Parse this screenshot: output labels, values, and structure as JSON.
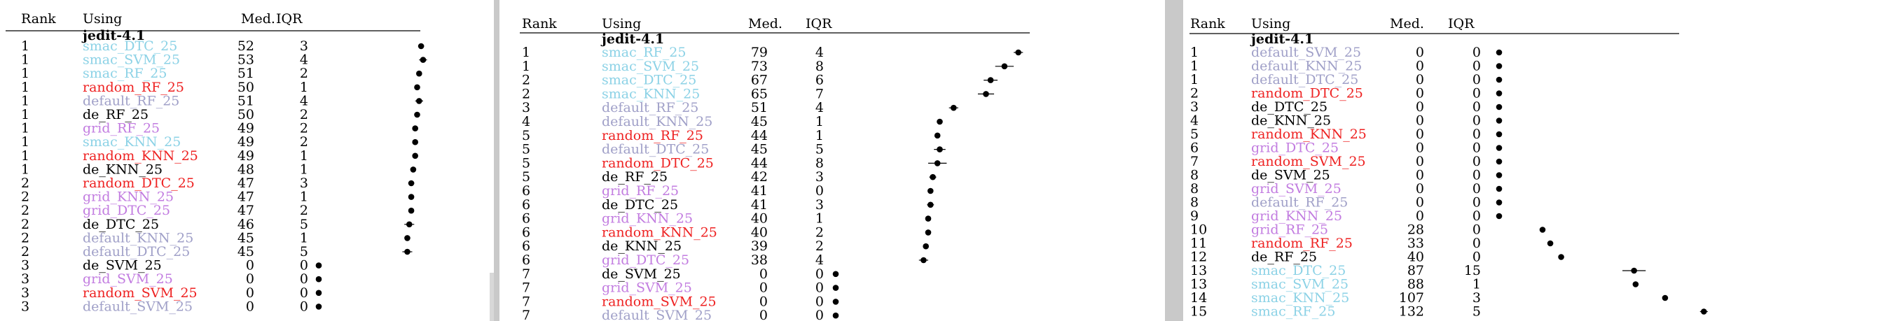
{
  "headers": {
    "rank": "Rank",
    "using": "Using",
    "median": "Med.",
    "iqr": "IQR"
  },
  "panels": [
    {
      "dataset": "jedit-4.1",
      "xmax": 100,
      "rows": [
        {
          "rank": "1",
          "name": "smac_DTC_25",
          "med": 52,
          "iqr": 3,
          "color": "#8cd2e6"
        },
        {
          "rank": "1",
          "name": "smac_SVM_25",
          "med": 53,
          "iqr": 4,
          "color": "#8cd2e6"
        },
        {
          "rank": "1",
          "name": "smac_RF_25",
          "med": 51,
          "iqr": 2,
          "color": "#8cd2e6"
        },
        {
          "rank": "1",
          "name": "random_RF_25",
          "med": 50,
          "iqr": 1,
          "color": "#ee2222"
        },
        {
          "rank": "1",
          "name": "default_RF_25",
          "med": 51,
          "iqr": 4,
          "color": "#a0a0c8"
        },
        {
          "rank": "1",
          "name": "de_RF_25",
          "med": 50,
          "iqr": 2,
          "color": "#000000"
        },
        {
          "rank": "1",
          "name": "grid_RF_25",
          "med": 49,
          "iqr": 2,
          "color": "#c27ce0"
        },
        {
          "rank": "1",
          "name": "smac_KNN_25",
          "med": 49,
          "iqr": 2,
          "color": "#8cd2e6"
        },
        {
          "rank": "1",
          "name": "random_KNN_25",
          "med": 49,
          "iqr": 1,
          "color": "#ee2222"
        },
        {
          "rank": "1",
          "name": "de_KNN_25",
          "med": 48,
          "iqr": 1,
          "color": "#000000"
        },
        {
          "rank": "2",
          "name": "random_DTC_25",
          "med": 47,
          "iqr": 3,
          "color": "#ee2222"
        },
        {
          "rank": "2",
          "name": "grid_KNN_25",
          "med": 47,
          "iqr": 1,
          "color": "#c27ce0"
        },
        {
          "rank": "2",
          "name": "grid_DTC_25",
          "med": 47,
          "iqr": 2,
          "color": "#c27ce0"
        },
        {
          "rank": "2",
          "name": "de_DTC_25",
          "med": 46,
          "iqr": 5,
          "color": "#000000"
        },
        {
          "rank": "2",
          "name": "default_KNN_25",
          "med": 45,
          "iqr": 1,
          "color": "#a0a0c8"
        },
        {
          "rank": "2",
          "name": "default_DTC_25",
          "med": 45,
          "iqr": 5,
          "color": "#a0a0c8"
        },
        {
          "rank": "3",
          "name": "de_SVM_25",
          "med": 0,
          "iqr": 0,
          "color": "#000000"
        },
        {
          "rank": "3",
          "name": "grid_SVM_25",
          "med": 0,
          "iqr": 0,
          "color": "#c27ce0"
        },
        {
          "rank": "3",
          "name": "random_SVM_25",
          "med": 0,
          "iqr": 0,
          "color": "#ee2222"
        },
        {
          "rank": "3",
          "name": "default_SVM_25",
          "med": 0,
          "iqr": 0,
          "color": "#a0a0c8"
        }
      ]
    },
    {
      "dataset": "jedit-4.1",
      "xmax": 100,
      "rows": [
        {
          "rank": "1",
          "name": "smac_RF_25",
          "med": 79,
          "iqr": 4,
          "color": "#8cd2e6"
        },
        {
          "rank": "1",
          "name": "smac_SVM_25",
          "med": 73,
          "iqr": 8,
          "color": "#8cd2e6"
        },
        {
          "rank": "2",
          "name": "smac_DTC_25",
          "med": 67,
          "iqr": 6,
          "color": "#8cd2e6"
        },
        {
          "rank": "2",
          "name": "smac_KNN_25",
          "med": 65,
          "iqr": 7,
          "color": "#8cd2e6"
        },
        {
          "rank": "3",
          "name": "default_RF_25",
          "med": 51,
          "iqr": 4,
          "color": "#a0a0c8"
        },
        {
          "rank": "4",
          "name": "default_KNN_25",
          "med": 45,
          "iqr": 1,
          "color": "#a0a0c8"
        },
        {
          "rank": "5",
          "name": "random_RF_25",
          "med": 44,
          "iqr": 1,
          "color": "#ee2222"
        },
        {
          "rank": "5",
          "name": "default_DTC_25",
          "med": 45,
          "iqr": 5,
          "color": "#a0a0c8"
        },
        {
          "rank": "5",
          "name": "random_DTC_25",
          "med": 44,
          "iqr": 8,
          "color": "#ee2222"
        },
        {
          "rank": "5",
          "name": "de_RF_25",
          "med": 42,
          "iqr": 3,
          "color": "#000000"
        },
        {
          "rank": "6",
          "name": "grid_RF_25",
          "med": 41,
          "iqr": 0,
          "color": "#c27ce0"
        },
        {
          "rank": "6",
          "name": "de_DTC_25",
          "med": 41,
          "iqr": 3,
          "color": "#000000"
        },
        {
          "rank": "6",
          "name": "grid_KNN_25",
          "med": 40,
          "iqr": 1,
          "color": "#c27ce0"
        },
        {
          "rank": "6",
          "name": "random_KNN_25",
          "med": 40,
          "iqr": 2,
          "color": "#ee2222"
        },
        {
          "rank": "6",
          "name": "de_KNN_25",
          "med": 39,
          "iqr": 2,
          "color": "#000000"
        },
        {
          "rank": "6",
          "name": "grid_DTC_25",
          "med": 38,
          "iqr": 4,
          "color": "#c27ce0"
        },
        {
          "rank": "7",
          "name": "de_SVM_25",
          "med": 0,
          "iqr": 0,
          "color": "#000000"
        },
        {
          "rank": "7",
          "name": "grid_SVM_25",
          "med": 0,
          "iqr": 0,
          "color": "#c27ce0"
        },
        {
          "rank": "7",
          "name": "random_SVM_25",
          "med": 0,
          "iqr": 0,
          "color": "#ee2222"
        },
        {
          "rank": "7",
          "name": "default_SVM_25",
          "med": 0,
          "iqr": 0,
          "color": "#a0a0c8"
        }
      ]
    },
    {
      "dataset": "jedit-4.1",
      "xmax": 140,
      "rows": [
        {
          "rank": "1",
          "name": "default_SVM_25",
          "med": 0,
          "iqr": 0,
          "color": "#a0a0c8"
        },
        {
          "rank": "1",
          "name": "default_KNN_25",
          "med": 0,
          "iqr": 0,
          "color": "#a0a0c8"
        },
        {
          "rank": "1",
          "name": "default_DTC_25",
          "med": 0,
          "iqr": 0,
          "color": "#a0a0c8"
        },
        {
          "rank": "2",
          "name": "random_DTC_25",
          "med": 0,
          "iqr": 0,
          "color": "#ee2222"
        },
        {
          "rank": "3",
          "name": "de_DTC_25",
          "med": 0,
          "iqr": 0,
          "color": "#000000"
        },
        {
          "rank": "4",
          "name": "de_KNN_25",
          "med": 0,
          "iqr": 0,
          "color": "#000000"
        },
        {
          "rank": "5",
          "name": "random_KNN_25",
          "med": 0,
          "iqr": 0,
          "color": "#ee2222"
        },
        {
          "rank": "6",
          "name": "grid_DTC_25",
          "med": 0,
          "iqr": 0,
          "color": "#c27ce0"
        },
        {
          "rank": "7",
          "name": "random_SVM_25",
          "med": 0,
          "iqr": 0,
          "color": "#ee2222"
        },
        {
          "rank": "8",
          "name": "de_SVM_25",
          "med": 0,
          "iqr": 0,
          "color": "#000000"
        },
        {
          "rank": "8",
          "name": "grid_SVM_25",
          "med": 0,
          "iqr": 0,
          "color": "#c27ce0"
        },
        {
          "rank": "8",
          "name": "default_RF_25",
          "med": 0,
          "iqr": 0,
          "color": "#a0a0c8"
        },
        {
          "rank": "9",
          "name": "grid_KNN_25",
          "med": 0,
          "iqr": 0,
          "color": "#c27ce0"
        },
        {
          "rank": "10",
          "name": "grid_RF_25",
          "med": 28,
          "iqr": 0,
          "color": "#c27ce0"
        },
        {
          "rank": "11",
          "name": "random_RF_25",
          "med": 33,
          "iqr": 0,
          "color": "#ee2222"
        },
        {
          "rank": "12",
          "name": "de_RF_25",
          "med": 40,
          "iqr": 0,
          "color": "#000000"
        },
        {
          "rank": "13",
          "name": "smac_DTC_25",
          "med": 87,
          "iqr": 15,
          "color": "#8cd2e6"
        },
        {
          "rank": "13",
          "name": "smac_SVM_25",
          "med": 88,
          "iqr": 1,
          "color": "#8cd2e6"
        },
        {
          "rank": "14",
          "name": "smac_KNN_25",
          "med": 107,
          "iqr": 3,
          "color": "#8cd2e6"
        },
        {
          "rank": "15",
          "name": "smac_RF_25",
          "med": 132,
          "iqr": 5,
          "color": "#8cd2e6"
        }
      ]
    }
  ]
}
